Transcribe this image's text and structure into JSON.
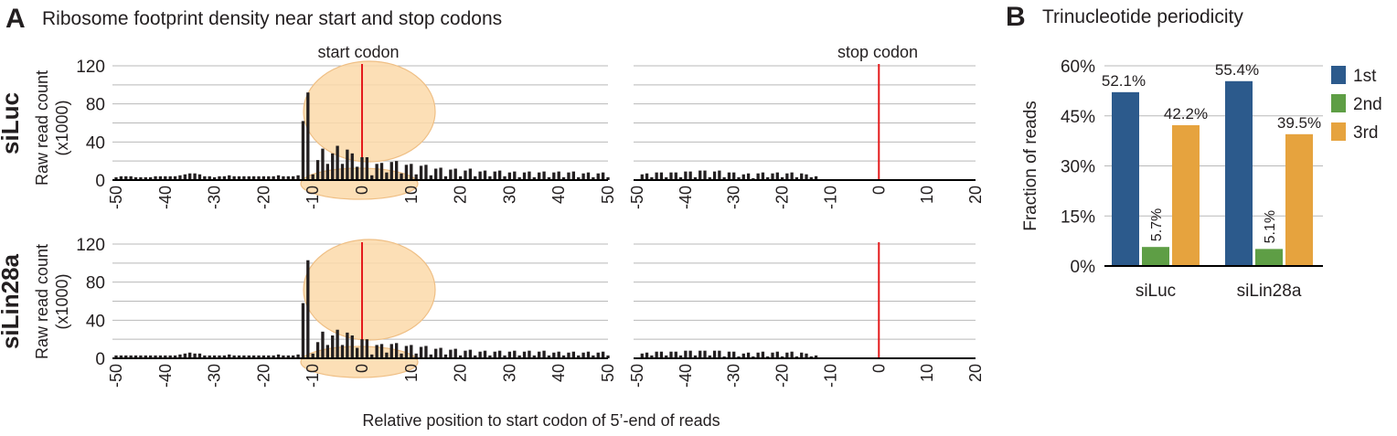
{
  "panel_a": {
    "letter": "A",
    "title": "Ribosome footprint density near start and stop codons",
    "xlabel": "Relative position to start codon of 5’-end of reads",
    "ylabel_line1": "Raw read count",
    "ylabel_line2": "(x1000)",
    "start_label": "start codon",
    "stop_label": "stop codon",
    "rows": [
      "siLuc",
      "siLin28a"
    ]
  },
  "panel_b": {
    "letter": "B",
    "title": "Trinucleotide periodicity"
  },
  "colors": {
    "frame1": "#2c5a8c",
    "frame2": "#5e9e45",
    "frame3": "#e6a33e",
    "codon_line": "#e41a1c",
    "ribosome": "#fbd9a9",
    "bar": "#231f20"
  },
  "chart_data": [
    {
      "type": "bar",
      "title": "Ribosome footprint density near start and stop codons",
      "subplot": "siLuc, start codon",
      "xlabel": "Relative position to start codon of 5’-end of reads",
      "ylabel": "Raw read count (x1000)",
      "xlim": [
        -50,
        50
      ],
      "ylim": [
        0,
        120
      ],
      "yticks": [
        0,
        40,
        80,
        120
      ],
      "xticks": [
        -50,
        -40,
        -30,
        -20,
        -10,
        0,
        10,
        20,
        30,
        40,
        50
      ],
      "x": [
        -50,
        -49,
        -48,
        -47,
        -46,
        -45,
        -44,
        -43,
        -42,
        -41,
        -40,
        -39,
        -38,
        -37,
        -36,
        -35,
        -34,
        -33,
        -32,
        -31,
        -30,
        -29,
        -28,
        -27,
        -26,
        -25,
        -24,
        -23,
        -22,
        -21,
        -20,
        -19,
        -18,
        -17,
        -16,
        -15,
        -14,
        -13,
        -12,
        -11,
        -10,
        -9,
        -8,
        -7,
        -6,
        -5,
        -4,
        -3,
        -2,
        -1,
        0,
        1,
        2,
        3,
        4,
        5,
        6,
        7,
        8,
        9,
        10,
        11,
        12,
        13,
        14,
        15,
        16,
        17,
        18,
        19,
        20,
        21,
        22,
        23,
        24,
        25,
        26,
        27,
        28,
        29,
        30,
        31,
        32,
        33,
        34,
        35,
        36,
        37,
        38,
        39,
        40,
        41,
        42,
        43,
        44,
        45,
        46,
        47,
        48,
        49,
        50
      ],
      "values": [
        3,
        4,
        4,
        4,
        3,
        3,
        3,
        3,
        4,
        4,
        4,
        4,
        4,
        5,
        6,
        7,
        7,
        6,
        4,
        4,
        3,
        4,
        4,
        5,
        4,
        4,
        4,
        4,
        4,
        4,
        4,
        4,
        4,
        5,
        4,
        4,
        4,
        5,
        62,
        92,
        6,
        21,
        33,
        17,
        28,
        36,
        17,
        32,
        28,
        14,
        24,
        24,
        5,
        17,
        18,
        8,
        19,
        20,
        7,
        16,
        17,
        6,
        15,
        16,
        5,
        12,
        13,
        4,
        11,
        12,
        4,
        10,
        12,
        4,
        9,
        10,
        4,
        9,
        10,
        4,
        8,
        9,
        3,
        8,
        9,
        3,
        8,
        9,
        3,
        8,
        9,
        3,
        8,
        9,
        3,
        7,
        8,
        3,
        7,
        8,
        3
      ]
    },
    {
      "type": "bar",
      "subplot": "siLuc, stop codon",
      "xlabel": "Relative position to start codon of 5’-end of reads",
      "xlim": [
        -50,
        20
      ],
      "ylim": [
        0,
        120
      ],
      "xticks": [
        -50,
        -40,
        -30,
        -20,
        -10,
        0,
        10,
        20
      ],
      "x": [
        -50,
        -49,
        -48,
        -47,
        -46,
        -45,
        -44,
        -43,
        -42,
        -41,
        -40,
        -39,
        -38,
        -37,
        -36,
        -35,
        -34,
        -33,
        -32,
        -31,
        -30,
        -29,
        -28,
        -27,
        -26,
        -25,
        -24,
        -23,
        -22,
        -21,
        -20,
        -19,
        -18,
        -17,
        -16,
        -15,
        -14,
        -13,
        -12,
        -11,
        -10,
        -9,
        -8,
        -7,
        -6,
        -5,
        -4,
        -3,
        -2,
        -1,
        0,
        1,
        2,
        3,
        4,
        5,
        6,
        7,
        8,
        9,
        10,
        11,
        12,
        13,
        14,
        15,
        16,
        17,
        18,
        19,
        20
      ],
      "values": [
        0,
        6,
        7,
        3,
        8,
        8,
        3,
        8,
        8,
        3,
        9,
        9,
        3,
        10,
        10,
        3,
        9,
        10,
        3,
        8,
        8,
        3,
        6,
        7,
        2,
        7,
        8,
        3,
        7,
        8,
        3,
        7,
        8,
        3,
        7,
        6,
        3,
        4,
        0,
        0,
        0,
        0,
        0,
        0,
        0,
        0,
        0,
        0,
        0,
        0,
        0,
        0,
        0,
        0,
        0,
        0,
        0,
        0,
        0,
        0,
        0,
        0,
        0,
        0,
        0,
        0,
        0,
        0,
        0,
        0,
        0
      ]
    },
    {
      "type": "bar",
      "subplot": "siLin28a, start codon",
      "xlabel": "Relative position to start codon of 5’-end of reads",
      "ylabel": "Raw read count (x1000)",
      "xlim": [
        -50,
        50
      ],
      "ylim": [
        0,
        120
      ],
      "yticks": [
        0,
        40,
        80,
        120
      ],
      "xticks": [
        -50,
        -40,
        -30,
        -20,
        -10,
        0,
        10,
        20,
        30,
        40,
        50
      ],
      "x": [
        -50,
        -49,
        -48,
        -47,
        -46,
        -45,
        -44,
        -43,
        -42,
        -41,
        -40,
        -39,
        -38,
        -37,
        -36,
        -35,
        -34,
        -33,
        -32,
        -31,
        -30,
        -29,
        -28,
        -27,
        -26,
        -25,
        -24,
        -23,
        -22,
        -21,
        -20,
        -19,
        -18,
        -17,
        -16,
        -15,
        -14,
        -13,
        -12,
        -11,
        -10,
        -9,
        -8,
        -7,
        -6,
        -5,
        -4,
        -3,
        -2,
        -1,
        0,
        1,
        2,
        3,
        4,
        5,
        6,
        7,
        8,
        9,
        10,
        11,
        12,
        13,
        14,
        15,
        16,
        17,
        18,
        19,
        20,
        21,
        22,
        23,
        24,
        25,
        26,
        27,
        28,
        29,
        30,
        31,
        32,
        33,
        34,
        35,
        36,
        37,
        38,
        39,
        40,
        41,
        42,
        43,
        44,
        45,
        46,
        47,
        48,
        49,
        50
      ],
      "values": [
        3,
        3,
        3,
        3,
        3,
        3,
        3,
        3,
        3,
        3,
        3,
        3,
        3,
        4,
        5,
        6,
        5,
        5,
        3,
        3,
        3,
        3,
        3,
        4,
        3,
        3,
        3,
        3,
        3,
        3,
        3,
        3,
        3,
        4,
        3,
        3,
        3,
        4,
        58,
        103,
        5,
        17,
        28,
        14,
        24,
        30,
        14,
        27,
        24,
        11,
        20,
        20,
        4,
        14,
        15,
        6,
        15,
        16,
        5,
        13,
        14,
        5,
        12,
        13,
        4,
        10,
        11,
        4,
        9,
        10,
        3,
        8,
        9,
        3,
        7,
        8,
        3,
        7,
        8,
        3,
        7,
        8,
        3,
        7,
        8,
        3,
        7,
        8,
        3,
        6,
        7,
        3,
        6,
        7,
        3,
        6,
        7,
        3,
        6,
        7,
        3
      ]
    },
    {
      "type": "bar",
      "subplot": "siLin28a, stop codon",
      "xlabel": "Relative position to start codon of 5’-end of reads",
      "xlim": [
        -50,
        20
      ],
      "ylim": [
        0,
        120
      ],
      "xticks": [
        -50,
        -40,
        -30,
        -20,
        -10,
        0,
        10,
        20
      ],
      "x": [
        -50,
        -49,
        -48,
        -47,
        -46,
        -45,
        -44,
        -43,
        -42,
        -41,
        -40,
        -39,
        -38,
        -37,
        -36,
        -35,
        -34,
        -33,
        -32,
        -31,
        -30,
        -29,
        -28,
        -27,
        -26,
        -25,
        -24,
        -23,
        -22,
        -21,
        -20,
        -19,
        -18,
        -17,
        -16,
        -15,
        -14,
        -13,
        -12,
        -11,
        -10,
        -9,
        -8,
        -7,
        -6,
        -5,
        -4,
        -3,
        -2,
        -1,
        0,
        1,
        2,
        3,
        4,
        5,
        6,
        7,
        8,
        9,
        10,
        11,
        12,
        13,
        14,
        15,
        16,
        17,
        18,
        19,
        20
      ],
      "values": [
        0,
        5,
        6,
        3,
        7,
        7,
        3,
        7,
        7,
        3,
        8,
        8,
        3,
        8,
        8,
        3,
        8,
        8,
        2,
        7,
        7,
        2,
        5,
        6,
        2,
        6,
        7,
        2,
        6,
        7,
        2,
        6,
        7,
        2,
        6,
        5,
        2,
        3,
        0,
        0,
        0,
        0,
        0,
        0,
        0,
        0,
        0,
        0,
        0,
        0,
        0,
        0,
        0,
        0,
        0,
        0,
        0,
        0,
        0,
        0,
        0,
        0,
        0,
        0,
        0,
        0,
        0,
        0,
        0,
        0,
        0
      ]
    },
    {
      "type": "bar",
      "title": "Trinucleotide periodicity",
      "categories": [
        "siLuc",
        "siLin28a"
      ],
      "series": [
        {
          "name": "1st",
          "values": [
            52.1,
            55.4
          ],
          "labels": [
            "52.1%",
            "55.4%"
          ]
        },
        {
          "name": "2nd",
          "values": [
            5.7,
            5.1
          ],
          "labels": [
            "5.7%",
            "5.1%"
          ]
        },
        {
          "name": "3rd",
          "values": [
            42.2,
            39.5
          ],
          "labels": [
            "42.2%",
            "39.5%"
          ]
        }
      ],
      "ylabel": "Fraction of reads",
      "ylim": [
        0,
        60
      ],
      "yticks": [
        0,
        15,
        30,
        45,
        60
      ],
      "ytick_labels": [
        "0%",
        "15%",
        "30%",
        "45%",
        "60%"
      ],
      "legend": "right",
      "grid": true
    }
  ]
}
